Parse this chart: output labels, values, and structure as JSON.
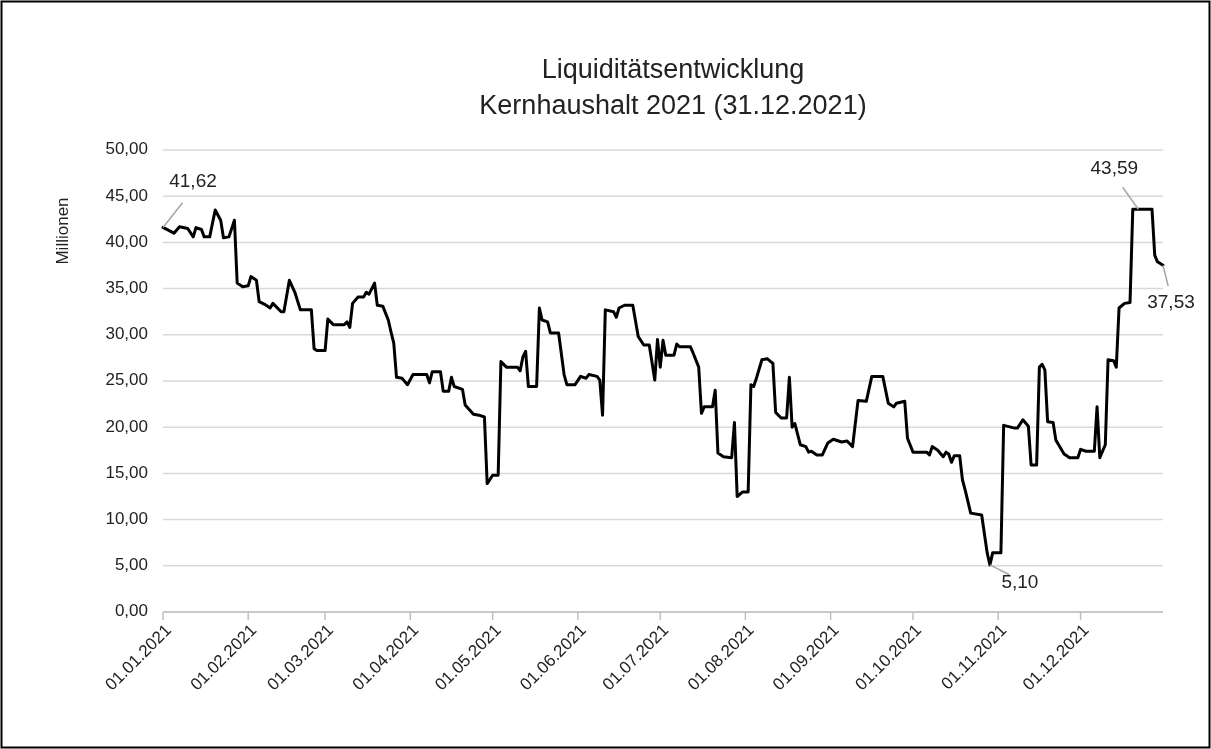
{
  "chart_data": {
    "type": "line",
    "title": "Liquiditätsentwicklung\nKernhaushalt 2021 (31.12.2021)",
    "ylabel": "Millionen",
    "grid": "y",
    "line_style": "solid",
    "marker": "none",
    "xlim": [
      "2021-01-01",
      "2021-12-31"
    ],
    "xticks": [
      {
        "value": "2021-01-01",
        "label": "01.01.2021"
      },
      {
        "value": "2021-02-01",
        "label": "01.02.2021"
      },
      {
        "value": "2021-03-01",
        "label": "01.03.2021"
      },
      {
        "value": "2021-04-01",
        "label": "01.04.2021"
      },
      {
        "value": "2021-05-01",
        "label": "01.05.2021"
      },
      {
        "value": "2021-06-01",
        "label": "01.06.2021"
      },
      {
        "value": "2021-07-01",
        "label": "01.07.2021"
      },
      {
        "value": "2021-08-01",
        "label": "01.08.2021"
      },
      {
        "value": "2021-09-01",
        "label": "01.09.2021"
      },
      {
        "value": "2021-10-01",
        "label": "01.10.2021"
      },
      {
        "value": "2021-11-01",
        "label": "01.11.2021"
      },
      {
        "value": "2021-12-01",
        "label": "01.12.2021"
      }
    ],
    "ylim": [
      0,
      50
    ],
    "yticks": [
      {
        "value": 0,
        "label": "0,00"
      },
      {
        "value": 5,
        "label": "5,00"
      },
      {
        "value": 10,
        "label": "10,00"
      },
      {
        "value": 15,
        "label": "15,00"
      },
      {
        "value": 20,
        "label": "20,00"
      },
      {
        "value": 25,
        "label": "25,00"
      },
      {
        "value": 30,
        "label": "30,00"
      },
      {
        "value": 35,
        "label": "35,00"
      },
      {
        "value": 40,
        "label": "40,00"
      },
      {
        "value": 45,
        "label": "45,00"
      },
      {
        "value": 50,
        "label": "50,00"
      }
    ],
    "annotations": [
      {
        "text": "41,62",
        "x": "2021-01-01",
        "y": 41.62
      },
      {
        "text": "5,10",
        "x": "2021-10-29",
        "y": 5.1
      },
      {
        "text": "43,59",
        "x": "2021-12-22",
        "y": 43.59
      },
      {
        "text": "37,53",
        "x": "2021-12-31",
        "y": 37.53
      }
    ],
    "series": [
      {
        "color": "#000000",
        "x": [
          "2021-01-01",
          "2021-01-05",
          "2021-01-07",
          "2021-01-10",
          "2021-01-12",
          "2021-01-13",
          "2021-01-15",
          "2021-01-16",
          "2021-01-18",
          "2021-01-20",
          "2021-01-22",
          "2021-01-23",
          "2021-01-25",
          "2021-01-27",
          "2021-01-28",
          "2021-01-30",
          "2021-02-01",
          "2021-02-02",
          "2021-02-04",
          "2021-02-05",
          "2021-02-07",
          "2021-02-09",
          "2021-02-10",
          "2021-02-13",
          "2021-02-14",
          "2021-02-16",
          "2021-02-18",
          "2021-02-20",
          "2021-02-24",
          "2021-02-25",
          "2021-02-26",
          "2021-03-01",
          "2021-03-02",
          "2021-03-04",
          "2021-03-08",
          "2021-03-09",
          "2021-03-10",
          "2021-03-11",
          "2021-03-13",
          "2021-03-15",
          "2021-03-16",
          "2021-03-17",
          "2021-03-19",
          "2021-03-20",
          "2021-03-22",
          "2021-03-24",
          "2021-03-25",
          "2021-03-26",
          "2021-03-27",
          "2021-03-29",
          "2021-03-31",
          "2021-04-02",
          "2021-04-07",
          "2021-04-08",
          "2021-04-09",
          "2021-04-12",
          "2021-04-13",
          "2021-04-15",
          "2021-04-16",
          "2021-04-17",
          "2021-04-20",
          "2021-04-21",
          "2021-04-24",
          "2021-04-26",
          "2021-04-28",
          "2021-04-29",
          "2021-05-01",
          "2021-05-03",
          "2021-05-04",
          "2021-05-06",
          "2021-05-10",
          "2021-05-11",
          "2021-05-12",
          "2021-05-13",
          "2021-05-14",
          "2021-05-17",
          "2021-05-18",
          "2021-05-19",
          "2021-05-21",
          "2021-05-22",
          "2021-05-25",
          "2021-05-27",
          "2021-05-28",
          "2021-05-31",
          "2021-06-02",
          "2021-06-04",
          "2021-06-05",
          "2021-06-08",
          "2021-06-09",
          "2021-06-10",
          "2021-06-11",
          "2021-06-14",
          "2021-06-15",
          "2021-06-16",
          "2021-06-18",
          "2021-06-21",
          "2021-06-23",
          "2021-06-25",
          "2021-06-27",
          "2021-06-29",
          "2021-06-30",
          "2021-07-01",
          "2021-07-02",
          "2021-07-03",
          "2021-07-06",
          "2021-07-07",
          "2021-07-08",
          "2021-07-12",
          "2021-07-13",
          "2021-07-15",
          "2021-07-16",
          "2021-07-17",
          "2021-07-20",
          "2021-07-21",
          "2021-07-22",
          "2021-07-24",
          "2021-07-27",
          "2021-07-28",
          "2021-07-29",
          "2021-07-31",
          "2021-08-02",
          "2021-08-03",
          "2021-08-04",
          "2021-08-05",
          "2021-08-07",
          "2021-08-09",
          "2021-08-11",
          "2021-08-12",
          "2021-08-14",
          "2021-08-16",
          "2021-08-17",
          "2021-08-18",
          "2021-08-19",
          "2021-08-21",
          "2021-08-23",
          "2021-08-24",
          "2021-08-25",
          "2021-08-27",
          "2021-08-29",
          "2021-08-31",
          "2021-09-02",
          "2021-09-05",
          "2021-09-07",
          "2021-09-09",
          "2021-09-11",
          "2021-09-14",
          "2021-09-16",
          "2021-09-20",
          "2021-09-22",
          "2021-09-24",
          "2021-09-25",
          "2021-09-28",
          "2021-09-29",
          "2021-10-01",
          "2021-10-06",
          "2021-10-07",
          "2021-10-08",
          "2021-10-10",
          "2021-10-12",
          "2021-10-13",
          "2021-10-14",
          "2021-10-15",
          "2021-10-16",
          "2021-10-18",
          "2021-10-19",
          "2021-10-20",
          "2021-10-22",
          "2021-10-26",
          "2021-10-28",
          "2021-10-29",
          "2021-10-30",
          "2021-11-02",
          "2021-11-03",
          "2021-11-07",
          "2021-11-08",
          "2021-11-10",
          "2021-11-12",
          "2021-11-13",
          "2021-11-15",
          "2021-11-16",
          "2021-11-17",
          "2021-11-18",
          "2021-11-19",
          "2021-11-21",
          "2021-11-22",
          "2021-11-23",
          "2021-11-25",
          "2021-11-27",
          "2021-11-30",
          "2021-12-01",
          "2021-12-03",
          "2021-12-06",
          "2021-12-07",
          "2021-12-08",
          "2021-12-10",
          "2021-12-11",
          "2021-12-13",
          "2021-12-14",
          "2021-12-15",
          "2021-12-17",
          "2021-12-19",
          "2021-12-20",
          "2021-12-22",
          "2021-12-27",
          "2021-12-28",
          "2021-12-29",
          "2021-12-31"
        ],
        "values": [
          41.62,
          41.0,
          41.7,
          41.5,
          40.6,
          41.6,
          41.4,
          40.6,
          40.6,
          43.5,
          42.4,
          40.5,
          40.6,
          42.4,
          35.6,
          35.2,
          35.3,
          36.3,
          35.9,
          33.6,
          33.3,
          32.9,
          33.4,
          32.5,
          32.5,
          35.9,
          34.6,
          32.7,
          32.7,
          28.5,
          28.3,
          28.3,
          31.7,
          31.1,
          31.1,
          31.4,
          30.8,
          33.4,
          34.1,
          34.1,
          34.6,
          34.4,
          35.6,
          33.2,
          33.1,
          31.6,
          30.3,
          29.1,
          25.4,
          25.3,
          24.6,
          25.7,
          25.7,
          24.8,
          26.0,
          26.0,
          23.9,
          23.9,
          25.4,
          24.4,
          24.1,
          22.4,
          21.4,
          21.3,
          21.1,
          13.9,
          14.8,
          14.8,
          27.1,
          26.5,
          26.5,
          26.1,
          27.6,
          28.2,
          24.4,
          24.4,
          32.9,
          31.6,
          31.4,
          30.2,
          30.2,
          25.7,
          24.6,
          24.6,
          25.5,
          25.3,
          25.7,
          25.5,
          25.1,
          21.3,
          32.7,
          32.5,
          31.9,
          32.9,
          33.2,
          33.2,
          29.8,
          28.9,
          28.9,
          25.1,
          29.5,
          26.5,
          29.4,
          27.8,
          27.8,
          29.0,
          28.7,
          28.7,
          28.0,
          26.5,
          21.5,
          22.2,
          22.2,
          24.0,
          17.2,
          16.8,
          16.7,
          20.5,
          12.5,
          13.0,
          13.0,
          24.6,
          24.4,
          25.3,
          27.3,
          27.4,
          26.9,
          21.6,
          21.0,
          21.0,
          25.4,
          20.0,
          20.4,
          18.1,
          17.9,
          17.3,
          17.4,
          17.0,
          17.0,
          18.3,
          18.7,
          18.4,
          18.5,
          17.9,
          22.9,
          22.8,
          25.5,
          25.5,
          22.6,
          22.2,
          22.6,
          22.8,
          18.8,
          17.3,
          17.3,
          17.0,
          17.9,
          17.5,
          16.8,
          17.3,
          17.1,
          16.2,
          16.9,
          16.9,
          14.3,
          13.2,
          10.7,
          10.5,
          6.4,
          5.1,
          6.4,
          6.4,
          20.2,
          19.9,
          19.9,
          20.8,
          20.1,
          15.9,
          15.9,
          26.5,
          26.8,
          26.2,
          20.6,
          20.5,
          18.6,
          18.1,
          17.1,
          16.7,
          16.7,
          17.6,
          17.4,
          17.4,
          22.2,
          16.7,
          18.1,
          27.3,
          27.2,
          26.5,
          32.9,
          33.4,
          33.5,
          43.59,
          43.59,
          43.59,
          38.6,
          37.9,
          37.53
        ]
      }
    ]
  }
}
